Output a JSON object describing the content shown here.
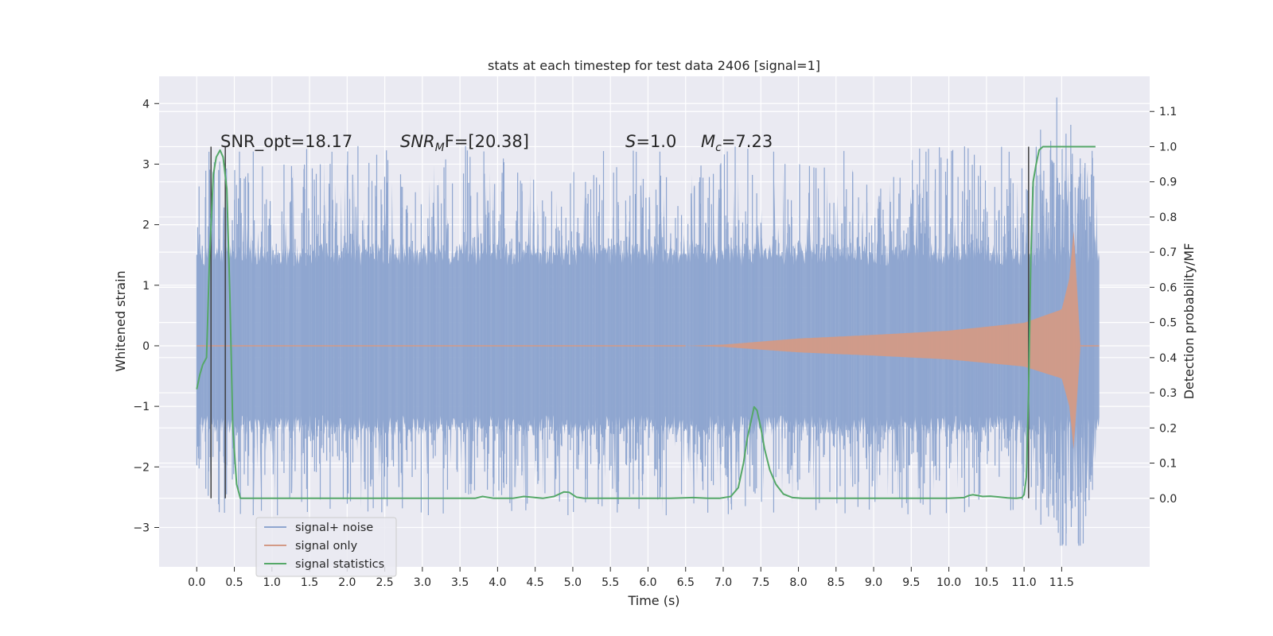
{
  "chart_data": {
    "type": "line",
    "title": "stats at each timestep for test data 2406 [signal=1]",
    "xlabel": "Time (s)",
    "ylabel": "Whitened strain",
    "y2label": "Detection probability/MF",
    "xlim": [
      -0.5,
      12.67
    ],
    "ylim": [
      -3.65,
      4.45
    ],
    "y2lim": [
      -0.195,
      1.2
    ],
    "x_ticks": [
      0.0,
      0.5,
      1.0,
      1.5,
      2.0,
      2.5,
      3.0,
      3.5,
      4.0,
      4.5,
      5.0,
      5.5,
      6.0,
      6.5,
      7.0,
      7.5,
      8.0,
      8.5,
      9.0,
      9.5,
      10.0,
      10.5,
      11.0,
      11.5
    ],
    "x_tick_labels": [
      "0.0",
      "0.5",
      "1.0",
      "1.5",
      "2.0",
      "2.5",
      "3.0",
      "3.5",
      "4.0",
      "4.5",
      "5.0",
      "5.5",
      "6.0",
      "6.5",
      "7.0",
      "7.5",
      "8.0",
      "8.5",
      "9.0",
      "9.5",
      "10.0",
      "10.5",
      "11.0",
      "11.5"
    ],
    "y_ticks": [
      -3,
      -2,
      -1,
      0,
      1,
      2,
      3,
      4
    ],
    "y_tick_labels": [
      "−3",
      "−2",
      "−1",
      "0",
      "1",
      "2",
      "3",
      "4"
    ],
    "y2_ticks": [
      0.0,
      0.1,
      0.2,
      0.3,
      0.4,
      0.5,
      0.6,
      0.7,
      0.8,
      0.9,
      1.0,
      1.1
    ],
    "y2_tick_labels": [
      "0.0",
      "0.1",
      "0.2",
      "0.3",
      "0.4",
      "0.5",
      "0.6",
      "0.7",
      "0.8",
      "0.9",
      "1.0",
      "1.1"
    ],
    "grid": true,
    "legend_position": "lower-left",
    "annotations": {
      "snr_opt": "SNR_opt=18.17",
      "snr_mf_prefix": "SNR",
      "snr_mf_sub": "M",
      "snr_mf_suffix": "F=[20.38]",
      "s_prefix": "S",
      "s_suffix": "=1.0",
      "mc_prefix": "M",
      "mc_sub": "c",
      "mc_suffix": "=7.23"
    },
    "vertical_lines_x": [
      0.19,
      0.38,
      11.06
    ],
    "series": [
      {
        "name": "signal+ noise",
        "color": "#8fa6d0",
        "axis": "left",
        "duration_s": 12.0,
        "approx_envelope": [
          1.55,
          -1.35
        ],
        "peak_max": 4.1,
        "peak_min": -3.3
      },
      {
        "name": "signal only",
        "color": "#d39a86",
        "axis": "left",
        "chirp_start_s": 6.5,
        "peak_time_s": 11.66,
        "peak_amplitude": 1.9,
        "ringdown_end_s": 11.75,
        "amplitude_at_s": [
          [
            7.0,
            0.02
          ],
          [
            8.0,
            0.12
          ],
          [
            9.0,
            0.18
          ],
          [
            10.0,
            0.25
          ],
          [
            11.0,
            0.38
          ],
          [
            11.5,
            0.6
          ],
          [
            11.6,
            1.1
          ],
          [
            11.66,
            1.9
          ]
        ]
      },
      {
        "name": "signal statistics",
        "color": "#55a868",
        "axis": "right",
        "x": [
          0.0,
          0.04,
          0.08,
          0.13,
          0.17,
          0.22,
          0.26,
          0.31,
          0.35,
          0.4,
          0.44,
          0.48,
          0.53,
          0.58,
          0.65,
          1.0,
          1.5,
          2.0,
          2.5,
          2.8,
          3.0,
          3.2,
          3.5,
          3.7,
          3.8,
          3.95,
          4.1,
          4.2,
          4.35,
          4.45,
          4.6,
          4.75,
          4.88,
          4.95,
          5.05,
          5.15,
          5.3,
          5.5,
          5.6,
          5.8,
          6.0,
          6.3,
          6.6,
          6.8,
          6.95,
          7.1,
          7.2,
          7.27,
          7.32,
          7.37,
          7.41,
          7.45,
          7.5,
          7.55,
          7.62,
          7.7,
          7.8,
          7.92,
          8.05,
          8.3,
          8.8,
          9.5,
          10.0,
          10.2,
          10.27,
          10.32,
          10.38,
          10.45,
          10.55,
          10.65,
          10.78,
          10.9,
          10.97,
          11.0,
          11.03,
          11.06,
          11.09,
          11.12,
          11.16,
          11.2,
          11.25,
          11.3,
          11.35,
          11.45,
          11.6,
          11.8,
          11.95
        ],
        "y": [
          0.31,
          0.35,
          0.38,
          0.4,
          0.68,
          0.92,
          0.97,
          0.99,
          0.97,
          0.88,
          0.58,
          0.2,
          0.04,
          0.0,
          0.0,
          0.0,
          0.0,
          0.0,
          0.0,
          0.0,
          0.0,
          0.0,
          0.0,
          0.0,
          0.005,
          0.0,
          0.0,
          0.0,
          0.005,
          0.003,
          0.0,
          0.005,
          0.018,
          0.017,
          0.003,
          0.0,
          0.0,
          0.0,
          0.0,
          0.0,
          0.0,
          0.0,
          0.002,
          0.0,
          0.0,
          0.005,
          0.03,
          0.1,
          0.17,
          0.22,
          0.26,
          0.25,
          0.2,
          0.14,
          0.08,
          0.04,
          0.012,
          0.002,
          0.0,
          0.0,
          0.0,
          0.0,
          0.0,
          0.002,
          0.008,
          0.01,
          0.008,
          0.005,
          0.006,
          0.004,
          0.001,
          0.0,
          0.002,
          0.01,
          0.06,
          0.3,
          0.68,
          0.9,
          0.95,
          0.99,
          1.0,
          1.0,
          1.0,
          1.0,
          1.0,
          1.0,
          1.0
        ]
      }
    ]
  }
}
